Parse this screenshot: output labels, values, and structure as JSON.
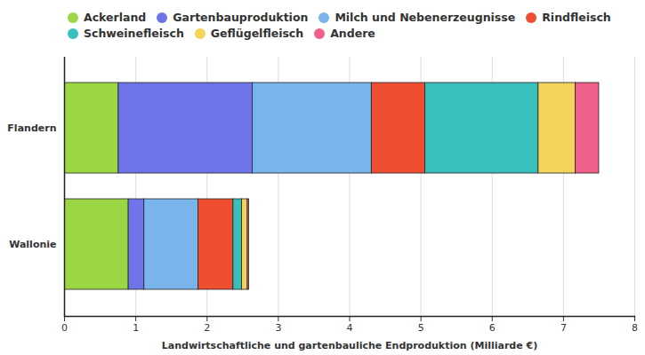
{
  "chart_data": {
    "type": "bar",
    "orientation": "horizontal",
    "stacked": true,
    "grid": true,
    "xlabel": "Landwirtschaftliche und gartenbauliche Endproduktion (Milliarde €)",
    "categories": [
      "Flandern",
      "Wallonie"
    ],
    "xlim": [
      0,
      8
    ],
    "xticks": [
      0,
      1,
      2,
      3,
      4,
      5,
      6,
      7,
      8
    ],
    "series": [
      {
        "name": "Ackerland",
        "color": "#9bd645",
        "values": [
          0.76,
          0.9
        ]
      },
      {
        "name": "Gartenbauproduktion",
        "color": "#6f74e8",
        "values": [
          1.88,
          0.22
        ]
      },
      {
        "name": "Milch und Nebenerzeugnisse",
        "color": "#7ab4ec",
        "values": [
          1.67,
          0.76
        ]
      },
      {
        "name": "Rindfleisch",
        "color": "#ef4e30",
        "values": [
          0.75,
          0.49
        ]
      },
      {
        "name": "Schweinefleisch",
        "color": "#3ac0bc",
        "values": [
          1.59,
          0.12
        ]
      },
      {
        "name": "Geflügelfleisch",
        "color": "#f4d35a",
        "values": [
          0.52,
          0.08
        ]
      },
      {
        "name": "Andere",
        "color": "#f1608a",
        "values": [
          0.33,
          0.02
        ]
      }
    ]
  }
}
